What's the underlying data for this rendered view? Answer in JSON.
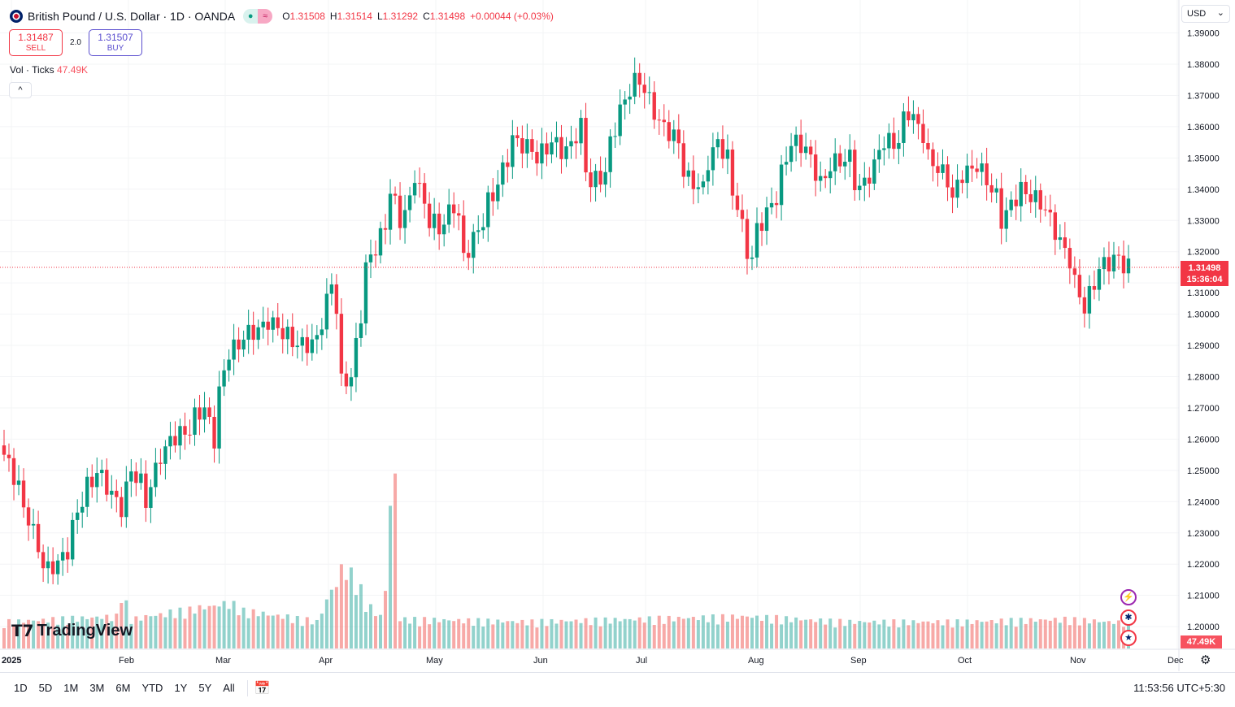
{
  "header": {
    "symbol": "British Pound / U.S. Dollar · 1D · OANDA",
    "ohlc": {
      "o_label": "O",
      "o": "1.31508",
      "h_label": "H",
      "h": "1.31514",
      "l_label": "L",
      "l": "1.31292",
      "c_label": "C",
      "c": "1.31498",
      "change": "+0.00044 (+0.03%)"
    },
    "market_status_color": "#089981"
  },
  "trade": {
    "sell_price": "1.31487",
    "sell_label": "SELL",
    "spread": "2.0",
    "buy_price": "1.31507",
    "buy_label": "BUY"
  },
  "volume_legend": {
    "label": "Vol · Ticks",
    "value": "47.49K"
  },
  "currency": {
    "label": "USD"
  },
  "price_badge": {
    "price": "1.31498",
    "countdown": "15:36:04"
  },
  "volume_badge": "47.49K",
  "logo": "TradingView",
  "ranges": [
    "1D",
    "5D",
    "1M",
    "3M",
    "6M",
    "YTD",
    "1Y",
    "5Y",
    "All"
  ],
  "clock": "11:53:56 UTC+5:30",
  "colors": {
    "up": "#089981",
    "down": "#f23645",
    "last_price": "#f23645"
  },
  "chart_data": {
    "type": "candlestick",
    "title": "British Pound / U.S. Dollar · 1D · OANDA",
    "x_tick_labels": [
      "2025",
      "Feb",
      "Mar",
      "Apr",
      "May",
      "Jun",
      "Jul",
      "Aug",
      "Sep",
      "Oct",
      "Nov",
      "Dec"
    ],
    "y_tick_labels": [
      "1.39000",
      "1.38000",
      "1.37000",
      "1.36000",
      "1.35000",
      "1.34000",
      "1.33000",
      "1.32000",
      "1.31000",
      "1.30000",
      "1.29000",
      "1.28000",
      "1.27000",
      "1.26000",
      "1.25000",
      "1.24000",
      "1.23000",
      "1.22000",
      "1.21000",
      "1.20000"
    ],
    "ylim": [
      1.1935,
      1.3925
    ],
    "grid": true,
    "last_price": 1.31498,
    "close_keyframes": [
      [
        "2024-12-31",
        1.255
      ],
      [
        "2025-01-03",
        1.245
      ],
      [
        "2025-01-07",
        1.235
      ],
      [
        "2025-01-10",
        1.22
      ],
      [
        "2025-01-13",
        1.218
      ],
      [
        "2025-01-16",
        1.222
      ],
      [
        "2025-01-20",
        1.232
      ],
      [
        "2025-01-23",
        1.245
      ],
      [
        "2025-01-27",
        1.25
      ],
      [
        "2025-01-31",
        1.24
      ],
      [
        "2025-02-03",
        1.238
      ],
      [
        "2025-02-05",
        1.25
      ],
      [
        "2025-02-10",
        1.24
      ],
      [
        "2025-02-13",
        1.255
      ],
      [
        "2025-02-17",
        1.26
      ],
      [
        "2025-02-21",
        1.263
      ],
      [
        "2025-02-26",
        1.27
      ],
      [
        "2025-02-28",
        1.26
      ],
      [
        "2025-03-03",
        1.275
      ],
      [
        "2025-03-05",
        1.288
      ],
      [
        "2025-03-10",
        1.293
      ],
      [
        "2025-03-17",
        1.298
      ],
      [
        "2025-03-21",
        1.293
      ],
      [
        "2025-03-26",
        1.29
      ],
      [
        "2025-03-31",
        1.292
      ],
      [
        "2025-04-03",
        1.31
      ],
      [
        "2025-04-07",
        1.278
      ],
      [
        "2025-04-09",
        1.28
      ],
      [
        "2025-04-11",
        1.3
      ],
      [
        "2025-04-14",
        1.315
      ],
      [
        "2025-04-18",
        1.328
      ],
      [
        "2025-04-21",
        1.34
      ],
      [
        "2025-04-23",
        1.33
      ],
      [
        "2025-04-28",
        1.345
      ],
      [
        "2025-05-01",
        1.33
      ],
      [
        "2025-05-05",
        1.327
      ],
      [
        "2025-05-08",
        1.335
      ],
      [
        "2025-05-12",
        1.318
      ],
      [
        "2025-05-16",
        1.33
      ],
      [
        "2025-05-20",
        1.338
      ],
      [
        "2025-05-23",
        1.35
      ],
      [
        "2025-05-26",
        1.356
      ],
      [
        "2025-06-02",
        1.35
      ],
      [
        "2025-06-05",
        1.355
      ],
      [
        "2025-06-10",
        1.352
      ],
      [
        "2025-06-13",
        1.36
      ],
      [
        "2025-06-17",
        1.342
      ],
      [
        "2025-06-20",
        1.345
      ],
      [
        "2025-06-23",
        1.355
      ],
      [
        "2025-06-25",
        1.365
      ],
      [
        "2025-06-27",
        1.372
      ],
      [
        "2025-07-01",
        1.375
      ],
      [
        "2025-07-04",
        1.365
      ],
      [
        "2025-07-08",
        1.36
      ],
      [
        "2025-07-11",
        1.355
      ],
      [
        "2025-07-15",
        1.343
      ],
      [
        "2025-07-18",
        1.34
      ],
      [
        "2025-07-23",
        1.355
      ],
      [
        "2025-07-25",
        1.35
      ],
      [
        "2025-07-29",
        1.335
      ],
      [
        "2025-07-31",
        1.32
      ],
      [
        "2025-08-01",
        1.318
      ],
      [
        "2025-08-04",
        1.327
      ],
      [
        "2025-08-07",
        1.335
      ],
      [
        "2025-08-11",
        1.345
      ],
      [
        "2025-08-13",
        1.355
      ],
      [
        "2025-08-18",
        1.353
      ],
      [
        "2025-08-21",
        1.342
      ],
      [
        "2025-08-25",
        1.348
      ],
      [
        "2025-08-29",
        1.35
      ],
      [
        "2025-09-02",
        1.34
      ],
      [
        "2025-09-05",
        1.347
      ],
      [
        "2025-09-09",
        1.355
      ],
      [
        "2025-09-12",
        1.355
      ],
      [
        "2025-09-16",
        1.365
      ],
      [
        "2025-09-18",
        1.36
      ],
      [
        "2025-09-22",
        1.35
      ],
      [
        "2025-09-25",
        1.345
      ],
      [
        "2025-09-29",
        1.337
      ],
      [
        "2025-10-01",
        1.345
      ],
      [
        "2025-10-06",
        1.348
      ],
      [
        "2025-10-09",
        1.34
      ],
      [
        "2025-10-13",
        1.33
      ],
      [
        "2025-10-17",
        1.34
      ],
      [
        "2025-10-21",
        1.338
      ],
      [
        "2025-10-27",
        1.33
      ],
      [
        "2025-10-30",
        1.32
      ],
      [
        "2025-11-03",
        1.31
      ],
      [
        "2025-11-05",
        1.302
      ],
      [
        "2025-11-07",
        1.31
      ],
      [
        "2025-11-11",
        1.316
      ],
      [
        "2025-11-14",
        1.318
      ],
      [
        "2025-11-18",
        1.31498
      ]
    ],
    "volume_keyframes_k": [
      [
        "2024-12-31",
        50
      ],
      [
        "2025-01-31",
        60
      ],
      [
        "2025-02-03",
        110
      ],
      [
        "2025-02-05",
        55
      ],
      [
        "2025-03-05",
        85
      ],
      [
        "2025-03-10",
        70
      ],
      [
        "2025-03-31",
        50
      ],
      [
        "2025-04-03",
        110
      ],
      [
        "2025-04-07",
        150
      ],
      [
        "2025-04-09",
        140
      ],
      [
        "2025-04-11",
        110
      ],
      [
        "2025-04-17",
        60
      ],
      [
        "2025-04-22",
        320
      ],
      [
        "2025-04-23",
        55
      ],
      [
        "2025-05-30",
        50
      ],
      [
        "2025-06-30",
        55
      ],
      [
        "2025-07-31",
        60
      ],
      [
        "2025-08-29",
        50
      ],
      [
        "2025-09-30",
        50
      ],
      [
        "2025-10-31",
        55
      ],
      [
        "2025-11-18",
        47.49
      ]
    ]
  }
}
